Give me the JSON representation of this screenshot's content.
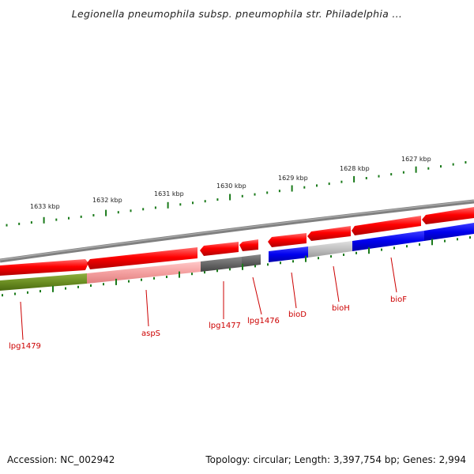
{
  "title": "Legionella pneumophila subsp. pneumophila str. Philadelphia ...",
  "footer": {
    "accession": "Accession: NC_002942",
    "summary": "Topology: circular; Length: 3,397,754 bp; Genes: 2,994"
  },
  "scale_labels": [
    "1633 kbp",
    "1632 kbp",
    "1631 kbp",
    "1630 kbp",
    "1629 kbp",
    "1628 kbp",
    "1627 kbp"
  ],
  "gene_labels": [
    "lpg1479",
    "aspS",
    "lpg1477",
    "lpg1476",
    "bioD",
    "bioH",
    "bioF"
  ],
  "colors": {
    "forward_feature": "#ff0000",
    "reverse_red": "#ee1111",
    "green_feature": "#6b8e23",
    "pink_feature": "#f4a0a0",
    "dark_gray_feature": "#666666",
    "blue_feature": "#0000ee",
    "light_gray_feature": "#c0c0c0",
    "backbone": "#808080",
    "ticks": "#1a7a1a",
    "label_text": "#cc0000"
  }
}
